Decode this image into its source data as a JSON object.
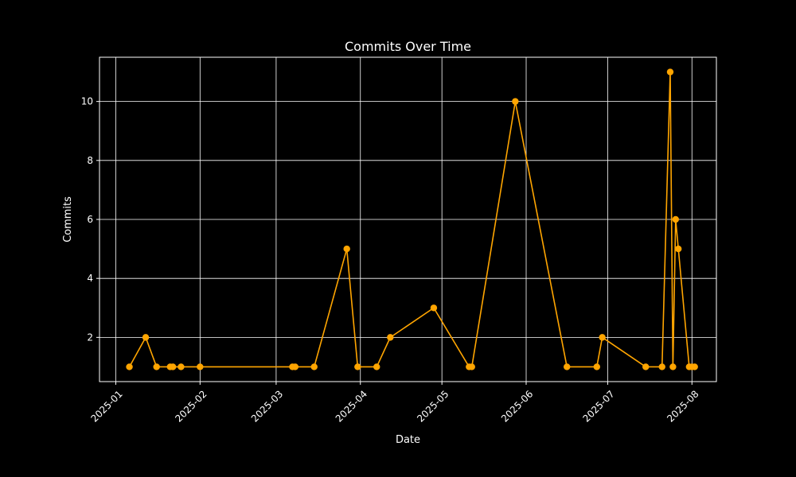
{
  "chart_data": {
    "type": "line",
    "title": "Commits Over Time",
    "xlabel": "Date",
    "ylabel": "Commits",
    "x_ticks": [
      "2025-01",
      "2025-02",
      "2025-03",
      "2025-04",
      "2025-05",
      "2025-06",
      "2025-07",
      "2025-08"
    ],
    "y_ticks": [
      2,
      4,
      6,
      8,
      10
    ],
    "xlim": [
      "2024-12-26",
      "2025-08-10"
    ],
    "ylim": [
      0.5,
      11.5
    ],
    "grid": true,
    "colors": {
      "background": "#000000",
      "line": "#ffa500",
      "grid": "#ffffff",
      "text": "#ffffff"
    },
    "series": [
      {
        "x": [
          "2025-01-06",
          "2025-01-12",
          "2025-01-16",
          "2025-01-21",
          "2025-01-22",
          "2025-01-25",
          "2025-02-01",
          "2025-03-07",
          "2025-03-08",
          "2025-03-15",
          "2025-03-27",
          "2025-03-31",
          "2025-04-07",
          "2025-04-12",
          "2025-04-28",
          "2025-05-11",
          "2025-05-12",
          "2025-05-28",
          "2025-06-16",
          "2025-06-27",
          "2025-06-29",
          "2025-07-15",
          "2025-07-21",
          "2025-07-24",
          "2025-07-25",
          "2025-07-26",
          "2025-07-27",
          "2025-07-31",
          "2025-08-01",
          "2025-08-02"
        ],
        "y": [
          1,
          2,
          1,
          1,
          1,
          1,
          1,
          1,
          1,
          1,
          5,
          1,
          1,
          2,
          3,
          1,
          1,
          10,
          1,
          1,
          2,
          1,
          1,
          11,
          1,
          6,
          5,
          1,
          1,
          1
        ]
      }
    ]
  }
}
